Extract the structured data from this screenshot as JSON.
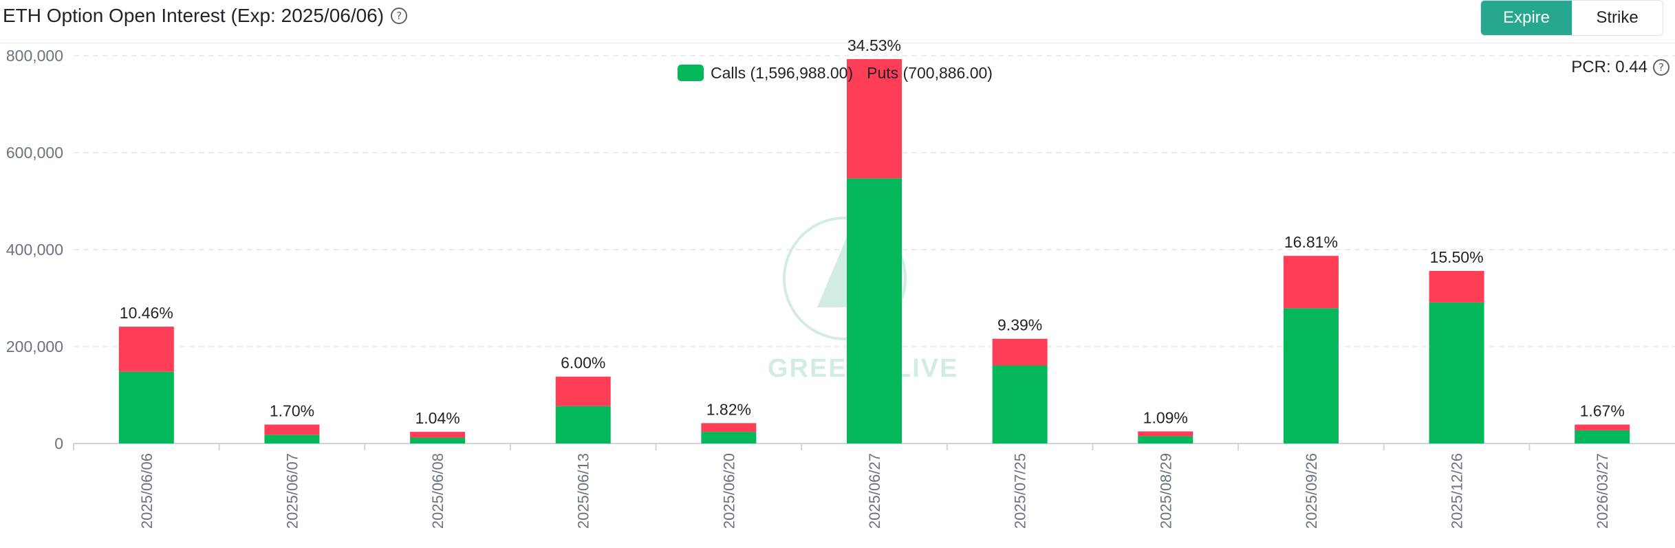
{
  "header": {
    "title": "ETH Option Open Interest (Exp: 2025/06/06)",
    "help_icon": "question-circle-icon",
    "toggle": [
      {
        "label": "Expire",
        "active": true
      },
      {
        "label": "Strike",
        "active": false
      }
    ]
  },
  "legend": {
    "calls_label": "Calls (1,596,988.00)",
    "puts_label": "Puts (700,886.00)"
  },
  "pcr": {
    "label": "PCR: 0.44"
  },
  "watermark": {
    "text": "GREEKS.LIVE"
  },
  "colors": {
    "calls": "#03b85a",
    "puts": "#fe3d57",
    "accent": "#26a88e"
  },
  "chart_data": {
    "type": "bar",
    "stacked": true,
    "categories": [
      "2025/06/06",
      "2025/06/07",
      "2025/06/08",
      "2025/06/13",
      "2025/06/20",
      "2025/06/27",
      "2025/07/25",
      "2025/08/29",
      "2025/09/26",
      "2025/12/26",
      "2026/03/27"
    ],
    "series": [
      {
        "name": "Calls",
        "values": [
          148000,
          18000,
          12000,
          77000,
          24000,
          547000,
          161000,
          15000,
          279000,
          291000,
          27000
        ]
      },
      {
        "name": "Puts",
        "values": [
          93000,
          21000,
          12000,
          61000,
          18000,
          246000,
          55000,
          10000,
          108000,
          65000,
          12000
        ]
      }
    ],
    "data_labels": [
      "10.46%",
      "1.70%",
      "1.04%",
      "6.00%",
      "1.82%",
      "34.53%",
      "9.39%",
      "1.09%",
      "16.81%",
      "15.50%",
      "1.67%"
    ],
    "yticks": [
      0,
      200000,
      400000,
      600000,
      800000
    ],
    "ytick_labels": [
      "0",
      "200,000",
      "400,000",
      "600,000",
      "800,000"
    ],
    "ylim": [
      0,
      800000
    ],
    "grid": true,
    "legend_position": "top-center"
  }
}
